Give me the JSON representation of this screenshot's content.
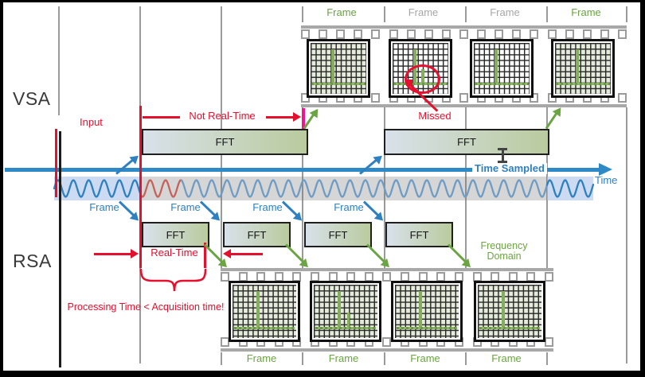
{
  "title_labels": {
    "vsa": "VSA",
    "rsa": "RSA"
  },
  "annotations": {
    "input": "Input",
    "not_real_time": "Not Real-Time",
    "real_time": "Real-Time",
    "missed": "Missed",
    "processing_note": "Processing Time < Acquisition time!",
    "time_sampled": "Time Sampled",
    "time": "Time",
    "frequency_domain": [
      "Frequency",
      "Domain"
    ]
  },
  "vsa_fft_blocks": [
    {
      "label": "FFT"
    },
    {
      "label": "FFT"
    }
  ],
  "rsa_fft_blocks": [
    {
      "label": "FFT"
    },
    {
      "label": "FFT"
    },
    {
      "label": "FFT"
    },
    {
      "label": "FFT"
    }
  ],
  "rsa_frame_labels": [
    {
      "label": "Frame"
    },
    {
      "label": "Frame"
    },
    {
      "label": "Frame"
    },
    {
      "label": "Frame"
    }
  ],
  "film_top_labels": [
    {
      "label": "Frame",
      "emphasis": "green"
    },
    {
      "label": "Frame",
      "emphasis": "gray"
    },
    {
      "label": "Frame",
      "emphasis": "gray"
    },
    {
      "label": "Frame",
      "emphasis": "green"
    }
  ],
  "film_bottom_labels": [
    {
      "label": "Frame"
    },
    {
      "label": "Frame"
    },
    {
      "label": "Frame"
    },
    {
      "label": "Frame"
    }
  ],
  "colors": {
    "red": "#e50f2e",
    "pink": "#f5128f",
    "blue": "#2e80c0",
    "green": "#6ba442",
    "timeline_blue": "#2e8ac6"
  }
}
